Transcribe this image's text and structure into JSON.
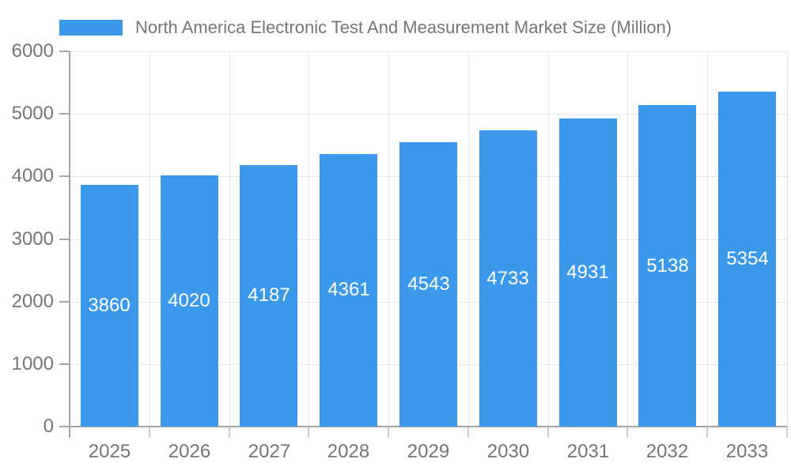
{
  "legend": {
    "label": "North America Electronic Test And Measurement Market Size (Million)"
  },
  "chart_data": {
    "type": "bar",
    "title": "North America Electronic Test And Measurement Market Size (Million)",
    "categories": [
      "2025",
      "2026",
      "2027",
      "2028",
      "2029",
      "2030",
      "2031",
      "2032",
      "2033"
    ],
    "values": [
      3860,
      4020,
      4187,
      4361,
      4543,
      4733,
      4931,
      5138,
      5354
    ],
    "bar_value_labels": [
      "3860",
      "4020",
      "4187",
      "4361",
      "4543",
      "4733",
      "4931",
      "5138",
      "5354"
    ],
    "xlabel": "",
    "ylabel": "",
    "ylim": [
      0,
      6000
    ],
    "ytick_step": 1000,
    "ytick_labels": [
      "0",
      "1000",
      "2000",
      "3000",
      "4000",
      "5000",
      "6000"
    ],
    "grid": true,
    "legend_position": "top-left",
    "colors": {
      "bar": "#3B99EC",
      "bar_label_text": "#ffffff",
      "axis_text": "#757575",
      "grid_line": "#e6e6e6",
      "axis_line": "#a6a6a6",
      "x_tick": "#cccccc",
      "background": "#ffffff"
    }
  }
}
